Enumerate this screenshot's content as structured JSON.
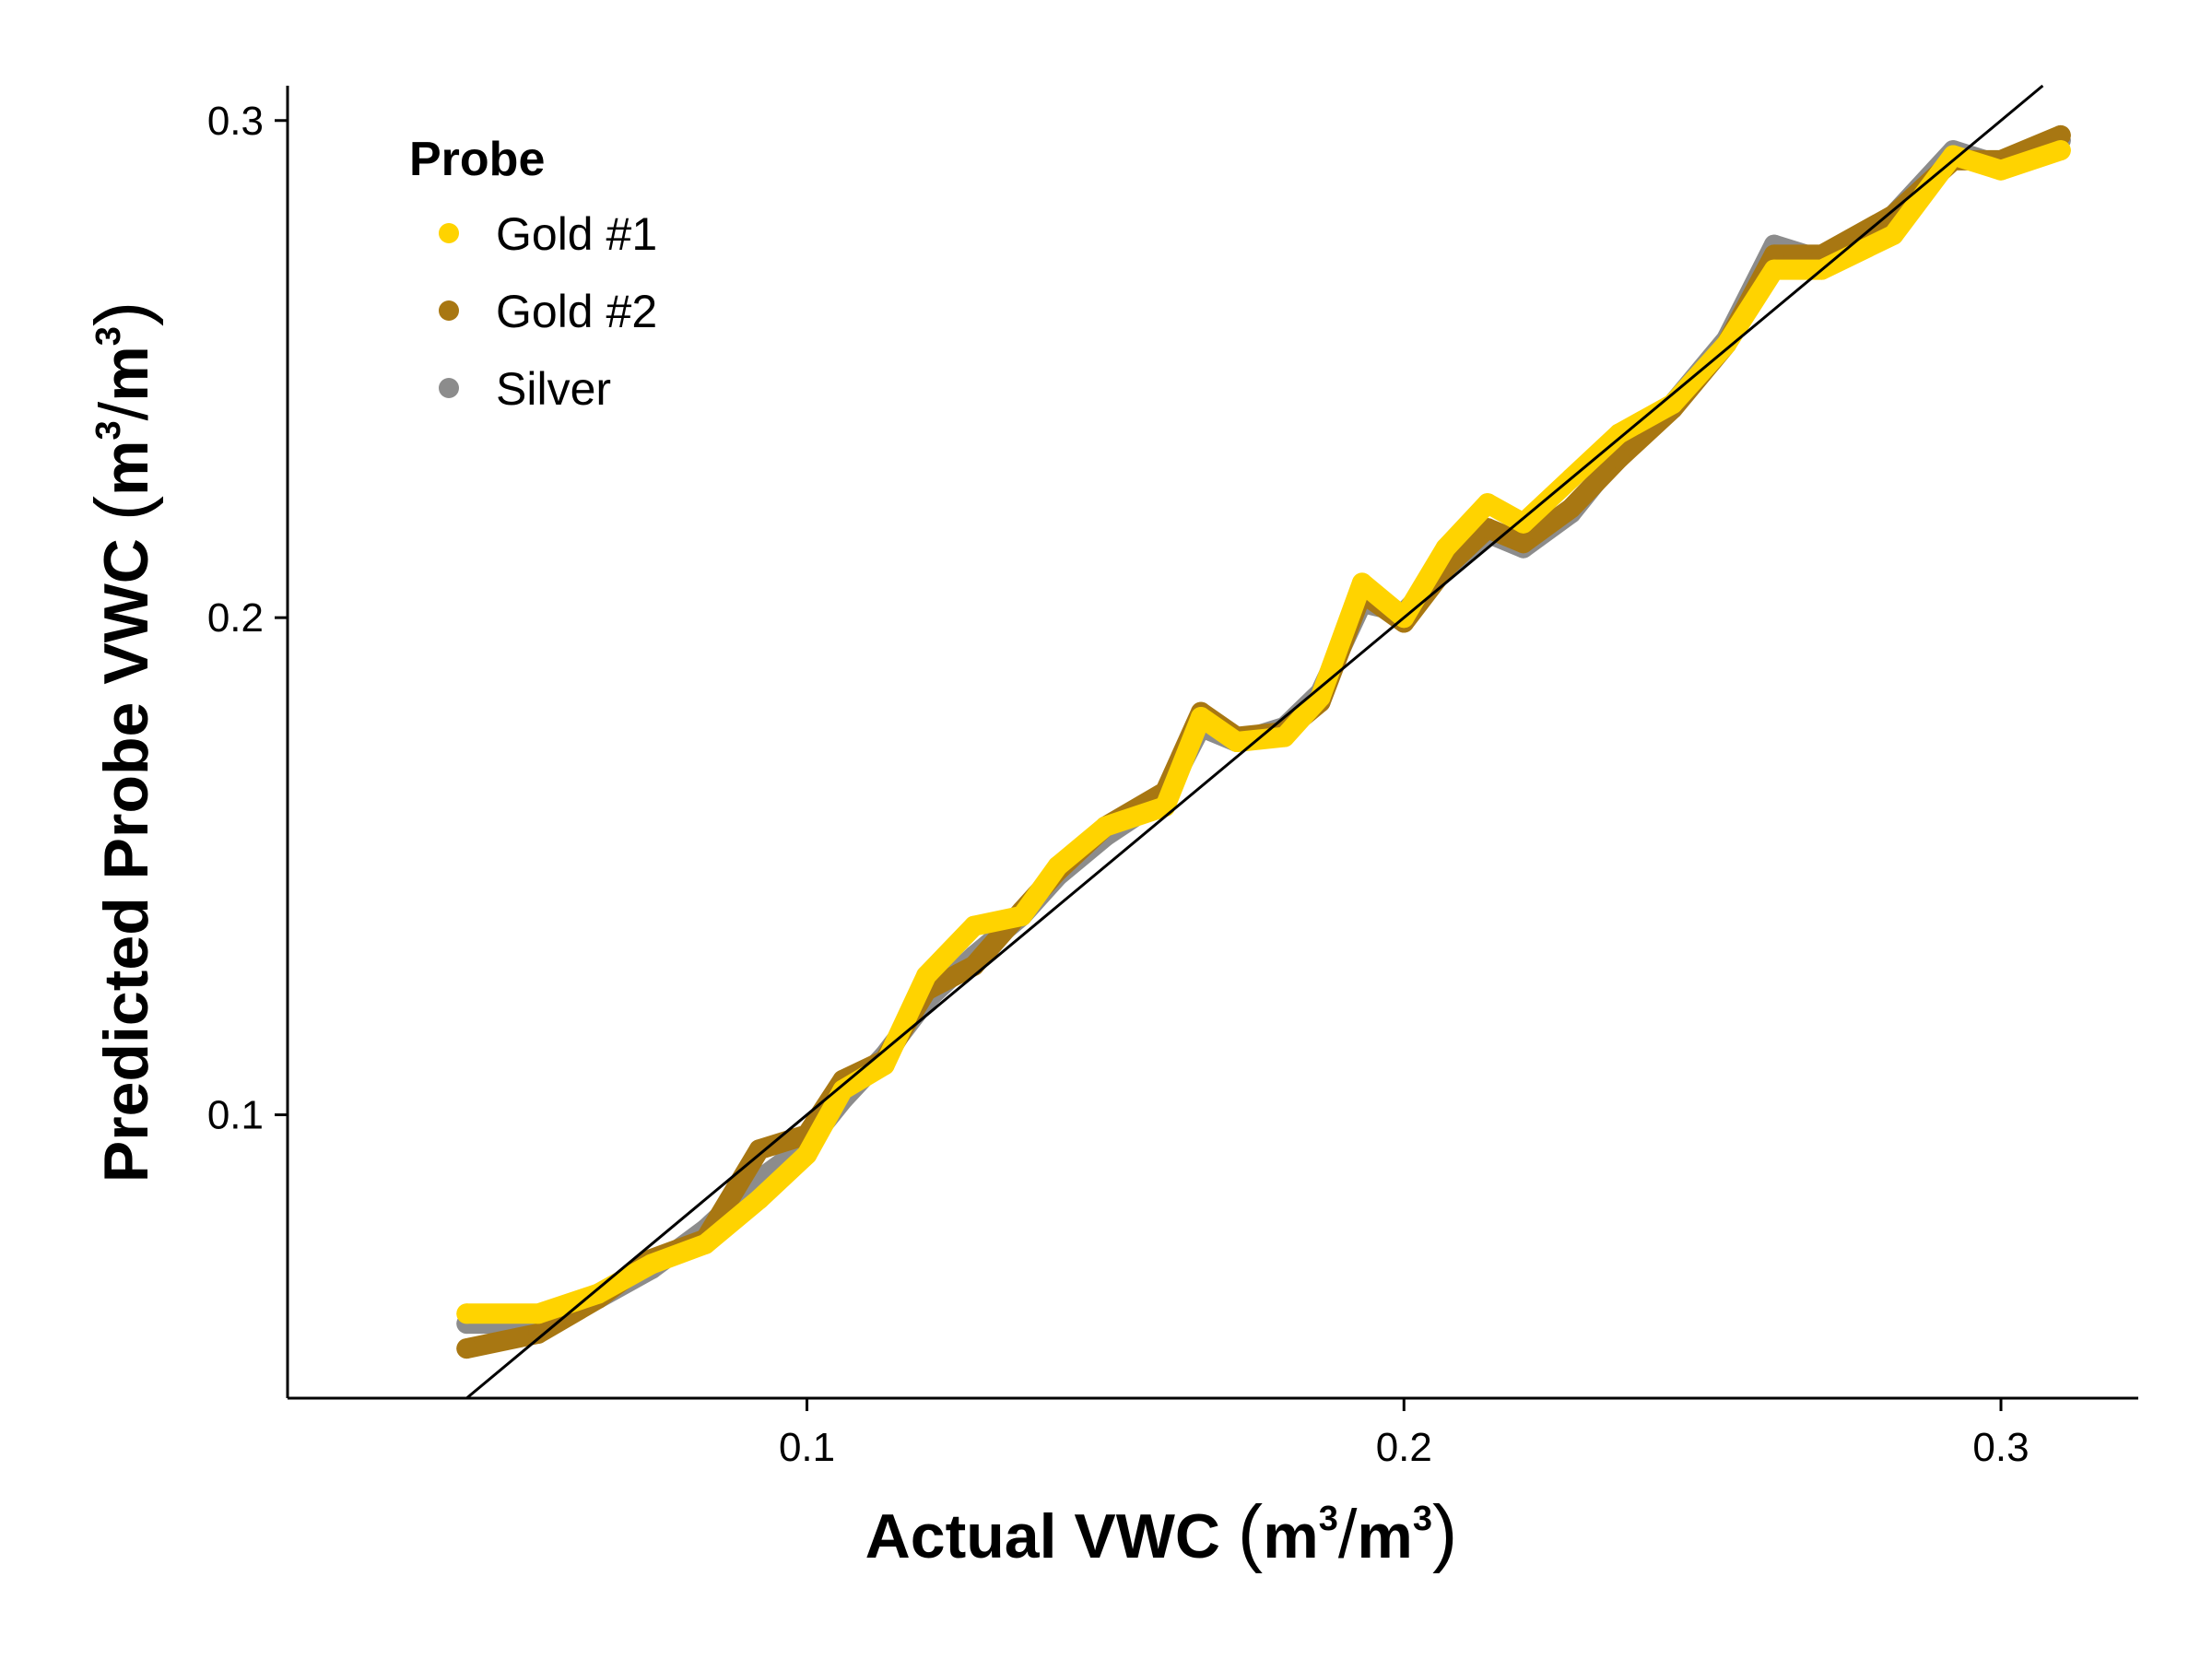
{
  "chart_data": {
    "type": "scatter",
    "title": "",
    "xlabel": {
      "prefix": "Actual VWC ",
      "open": "(",
      "m1": "m",
      "sup1": "3",
      "slash": "/",
      "m2": "m",
      "sup2": "3",
      "close": ")"
    },
    "ylabel": {
      "prefix": "Predicted Probe VWC ",
      "open": "(",
      "m1": "m",
      "sup1": "3",
      "slash": "/",
      "m2": "m",
      "sup2": "3",
      "close": ")"
    },
    "xlim": [
      0.013,
      0.323
    ],
    "ylim": [
      0.043,
      0.307
    ],
    "x_ticks": [
      0.1,
      0.2,
      0.3
    ],
    "x_tick_labels": [
      "0.1",
      "0.2",
      "0.3"
    ],
    "y_ticks": [
      0.1,
      0.2,
      0.3
    ],
    "y_tick_labels": [
      "0.1",
      "0.2",
      "0.3"
    ],
    "grid": false,
    "reference_line": {
      "type": "identity",
      "slope": 1,
      "intercept": 0,
      "color": "#000000"
    },
    "legend": {
      "title": "Probe",
      "position": "top-left"
    },
    "series": [
      {
        "name": "Silver",
        "color": "#8c8c8c",
        "points": [
          [
            0.043,
            0.058
          ],
          [
            0.055,
            0.058
          ],
          [
            0.065,
            0.063
          ],
          [
            0.074,
            0.069
          ],
          [
            0.083,
            0.077
          ],
          [
            0.092,
            0.087
          ],
          [
            0.1,
            0.094
          ],
          [
            0.106,
            0.103
          ],
          [
            0.113,
            0.112
          ],
          [
            0.12,
            0.123
          ],
          [
            0.128,
            0.132
          ],
          [
            0.136,
            0.14
          ],
          [
            0.142,
            0.148
          ],
          [
            0.15,
            0.156
          ],
          [
            0.16,
            0.164
          ],
          [
            0.166,
            0.178
          ],
          [
            0.172,
            0.175
          ],
          [
            0.18,
            0.178
          ],
          [
            0.186,
            0.185
          ],
          [
            0.193,
            0.203
          ],
          [
            0.2,
            0.201
          ],
          [
            0.207,
            0.21
          ],
          [
            0.214,
            0.217
          ],
          [
            0.22,
            0.214
          ],
          [
            0.228,
            0.221
          ],
          [
            0.236,
            0.233
          ],
          [
            0.245,
            0.243
          ],
          [
            0.254,
            0.256
          ],
          [
            0.262,
            0.275
          ],
          [
            0.27,
            0.272
          ],
          [
            0.282,
            0.281
          ],
          [
            0.292,
            0.294
          ],
          [
            0.3,
            0.291
          ],
          [
            0.31,
            0.296
          ]
        ]
      },
      {
        "name": "Gold #2",
        "color": "#a87712",
        "points": [
          [
            0.043,
            0.053
          ],
          [
            0.055,
            0.056
          ],
          [
            0.065,
            0.063
          ],
          [
            0.074,
            0.071
          ],
          [
            0.083,
            0.075
          ],
          [
            0.092,
            0.093
          ],
          [
            0.1,
            0.096
          ],
          [
            0.106,
            0.107
          ],
          [
            0.113,
            0.111
          ],
          [
            0.12,
            0.125
          ],
          [
            0.128,
            0.13
          ],
          [
            0.136,
            0.141
          ],
          [
            0.142,
            0.149
          ],
          [
            0.15,
            0.158
          ],
          [
            0.16,
            0.165
          ],
          [
            0.166,
            0.181
          ],
          [
            0.172,
            0.176
          ],
          [
            0.18,
            0.177
          ],
          [
            0.186,
            0.183
          ],
          [
            0.193,
            0.205
          ],
          [
            0.2,
            0.199
          ],
          [
            0.207,
            0.21
          ],
          [
            0.214,
            0.218
          ],
          [
            0.22,
            0.215
          ],
          [
            0.228,
            0.222
          ],
          [
            0.236,
            0.232
          ],
          [
            0.245,
            0.242
          ],
          [
            0.254,
            0.255
          ],
          [
            0.262,
            0.273
          ],
          [
            0.27,
            0.273
          ],
          [
            0.282,
            0.281
          ],
          [
            0.292,
            0.292
          ],
          [
            0.3,
            0.292
          ],
          [
            0.31,
            0.297
          ]
        ]
      },
      {
        "name": "Gold #1",
        "color": "#ffd300",
        "points": [
          [
            0.043,
            0.06
          ],
          [
            0.055,
            0.06
          ],
          [
            0.065,
            0.064
          ],
          [
            0.074,
            0.07
          ],
          [
            0.083,
            0.074
          ],
          [
            0.092,
            0.083
          ],
          [
            0.1,
            0.092
          ],
          [
            0.106,
            0.105
          ],
          [
            0.113,
            0.11
          ],
          [
            0.12,
            0.128
          ],
          [
            0.128,
            0.138
          ],
          [
            0.136,
            0.14
          ],
          [
            0.142,
            0.15
          ],
          [
            0.15,
            0.158
          ],
          [
            0.16,
            0.162
          ],
          [
            0.166,
            0.18
          ],
          [
            0.172,
            0.175
          ],
          [
            0.18,
            0.176
          ],
          [
            0.186,
            0.184
          ],
          [
            0.193,
            0.207
          ],
          [
            0.2,
            0.2
          ],
          [
            0.207,
            0.214
          ],
          [
            0.214,
            0.223
          ],
          [
            0.22,
            0.219
          ],
          [
            0.228,
            0.228
          ],
          [
            0.236,
            0.237
          ],
          [
            0.245,
            0.243
          ],
          [
            0.254,
            0.255
          ],
          [
            0.262,
            0.27
          ],
          [
            0.27,
            0.27
          ],
          [
            0.282,
            0.277
          ],
          [
            0.292,
            0.293
          ],
          [
            0.3,
            0.29
          ],
          [
            0.31,
            0.294
          ]
        ]
      }
    ]
  }
}
